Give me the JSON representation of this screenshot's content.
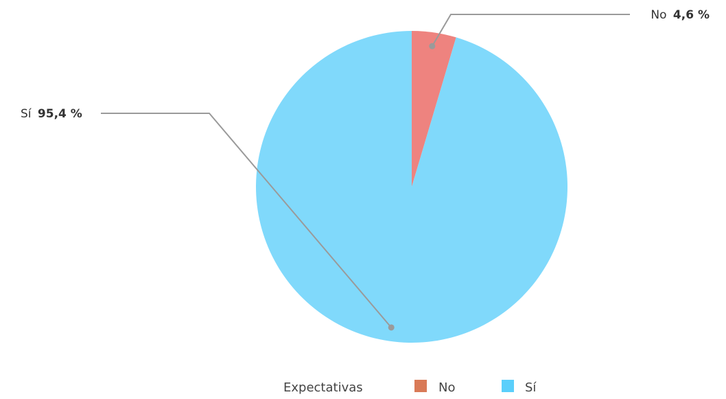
{
  "chart_data": {
    "type": "pie",
    "slices": [
      {
        "label": "No",
        "value": 4.6,
        "display": "4,6 %",
        "color": "#EE837F",
        "legend_color": "#D97A57"
      },
      {
        "label": "Sí",
        "value": 95.4,
        "display": "95,4 %",
        "color": "#80D9FB",
        "legend_color": "#5BCFFB"
      }
    ],
    "legend": {
      "title": "Expectativas",
      "placement": "bottom"
    }
  }
}
